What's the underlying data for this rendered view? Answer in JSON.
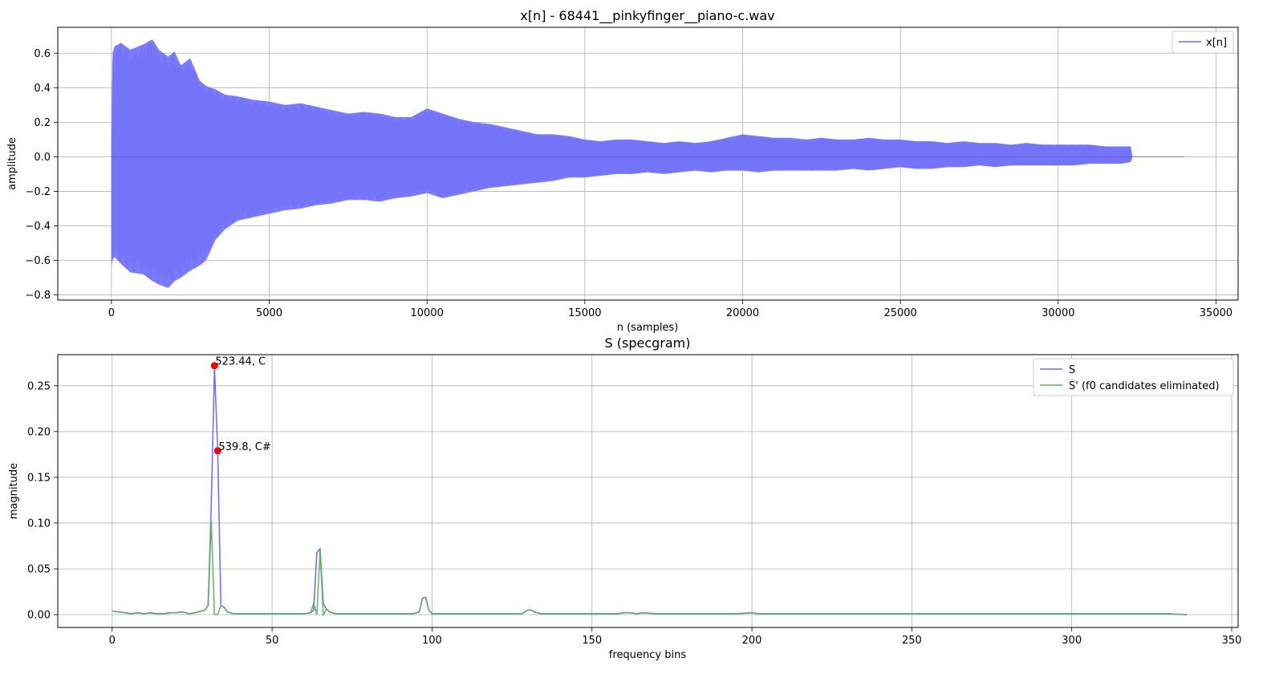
{
  "chart_data": [
    {
      "type": "area",
      "title": "x[n] - 68441__pinkyfinger__piano-c.wav",
      "xlabel": "n (samples)",
      "ylabel": "amplitude",
      "xlim": [
        -1700,
        35700
      ],
      "ylim": [
        -0.83,
        0.75
      ],
      "xticks": [
        0,
        5000,
        10000,
        15000,
        20000,
        25000,
        30000,
        35000
      ],
      "xtick_labels": [
        "0",
        "5000",
        "10000",
        "15000",
        "20000",
        "25000",
        "30000",
        "35000"
      ],
      "yticks": [
        -0.8,
        -0.6,
        -0.4,
        -0.2,
        0.0,
        0.2,
        0.4,
        0.6
      ],
      "ytick_labels": [
        "−0.8",
        "−0.6",
        "−0.4",
        "−0.2",
        "0.0",
        "0.2",
        "0.4",
        "0.6"
      ],
      "grid": true,
      "legend": {
        "position": "top-right",
        "entries": [
          "x[n]"
        ]
      },
      "series": [
        {
          "name": "x[n]",
          "color": "#7b7bff",
          "envelope": {
            "n": [
              0,
              30,
              100,
              300,
              600,
              1000,
              1300,
              1500,
              1800,
              2000,
              2200,
              2500,
              2800,
              3000,
              3300,
              3600,
              4000,
              4500,
              5000,
              5500,
              6000,
              6500,
              7000,
              7500,
              8000,
              8500,
              9000,
              9500,
              10000,
              10500,
              11000,
              11500,
              12000,
              12500,
              13000,
              13500,
              14000,
              14500,
              15000,
              15500,
              16000,
              16500,
              17000,
              17500,
              18000,
              18500,
              19000,
              19500,
              20000,
              20500,
              21000,
              21500,
              22000,
              22500,
              23000,
              23500,
              24000,
              24500,
              25000,
              25500,
              26000,
              26500,
              27000,
              27500,
              28000,
              28500,
              29000,
              29500,
              30000,
              30500,
              31000,
              31500,
              32000,
              32300,
              32350,
              34000
            ],
            "upper": [
              0.07,
              0.6,
              0.64,
              0.66,
              0.62,
              0.65,
              0.68,
              0.62,
              0.58,
              0.61,
              0.53,
              0.57,
              0.44,
              0.41,
              0.39,
              0.36,
              0.35,
              0.33,
              0.32,
              0.3,
              0.31,
              0.29,
              0.27,
              0.25,
              0.26,
              0.25,
              0.23,
              0.23,
              0.28,
              0.25,
              0.22,
              0.2,
              0.19,
              0.17,
              0.15,
              0.13,
              0.13,
              0.12,
              0.1,
              0.09,
              0.1,
              0.1,
              0.09,
              0.08,
              0.09,
              0.08,
              0.09,
              0.11,
              0.13,
              0.12,
              0.11,
              0.11,
              0.1,
              0.11,
              0.1,
              0.1,
              0.11,
              0.1,
              0.1,
              0.09,
              0.09,
              0.08,
              0.09,
              0.08,
              0.08,
              0.07,
              0.08,
              0.07,
              0.07,
              0.07,
              0.07,
              0.06,
              0.06,
              0.06,
              0.0,
              0.0
            ],
            "lower": [
              -0.64,
              -0.6,
              -0.58,
              -0.62,
              -0.67,
              -0.68,
              -0.72,
              -0.74,
              -0.76,
              -0.72,
              -0.7,
              -0.66,
              -0.63,
              -0.6,
              -0.48,
              -0.42,
              -0.37,
              -0.35,
              -0.33,
              -0.31,
              -0.3,
              -0.28,
              -0.27,
              -0.25,
              -0.25,
              -0.26,
              -0.24,
              -0.23,
              -0.21,
              -0.24,
              -0.22,
              -0.2,
              -0.18,
              -0.17,
              -0.16,
              -0.15,
              -0.14,
              -0.12,
              -0.12,
              -0.11,
              -0.1,
              -0.1,
              -0.09,
              -0.1,
              -0.09,
              -0.08,
              -0.09,
              -0.08,
              -0.08,
              -0.09,
              -0.08,
              -0.08,
              -0.08,
              -0.08,
              -0.08,
              -0.07,
              -0.08,
              -0.07,
              -0.06,
              -0.07,
              -0.07,
              -0.06,
              -0.06,
              -0.05,
              -0.06,
              -0.05,
              -0.05,
              -0.05,
              -0.05,
              -0.05,
              -0.04,
              -0.04,
              -0.04,
              -0.03,
              0.0,
              0.0
            ]
          }
        }
      ]
    },
    {
      "type": "line",
      "title": "S (specgram)",
      "xlabel": "frequency bins",
      "ylabel": "magnitude",
      "xlim": [
        -17,
        352
      ],
      "ylim": [
        -0.014,
        0.284
      ],
      "xticks": [
        0,
        50,
        100,
        150,
        200,
        250,
        300,
        350
      ],
      "xtick_labels": [
        "0",
        "50",
        "100",
        "150",
        "200",
        "250",
        "300",
        "350"
      ],
      "yticks": [
        0.0,
        0.05,
        0.1,
        0.15,
        0.2,
        0.25
      ],
      "ytick_labels": [
        "0.00",
        "0.05",
        "0.10",
        "0.15",
        "0.20",
        "0.25"
      ],
      "grid": true,
      "legend": {
        "position": "top-right",
        "entries": [
          "S",
          "S' (f0 candidates eliminated)"
        ]
      },
      "series": [
        {
          "name": "S",
          "color": "#6b6bf0",
          "x": [
            0,
            2,
            4,
            6,
            8,
            10,
            12,
            14,
            16,
            18,
            20,
            22,
            24,
            26,
            28,
            29,
            30,
            31,
            32,
            33,
            34,
            35,
            36,
            38,
            40,
            45,
            50,
            55,
            60,
            62,
            63,
            64,
            65,
            66,
            67,
            68,
            70,
            75,
            80,
            85,
            90,
            94,
            96,
            97,
            98,
            99,
            100,
            102,
            105,
            110,
            120,
            128,
            130,
            131,
            132,
            134,
            136,
            140,
            150,
            158,
            160,
            162,
            164,
            166,
            170,
            180,
            190,
            195,
            200,
            202,
            205,
            210,
            220,
            225,
            230,
            235,
            240,
            250,
            260,
            270,
            280,
            290,
            300,
            310,
            320,
            330,
            336
          ],
          "y": [
            0.004,
            0.003,
            0.002,
            0.001,
            0.002,
            0.001,
            0.002,
            0.001,
            0.001,
            0.002,
            0.002,
            0.003,
            0.001,
            0.002,
            0.004,
            0.005,
            0.01,
            0.12,
            0.27,
            0.18,
            0.01,
            0.008,
            0.003,
            0.001,
            0.001,
            0.001,
            0.001,
            0.001,
            0.001,
            0.002,
            0.005,
            0.068,
            0.072,
            0.012,
            0.006,
            0.003,
            0.001,
            0.001,
            0.001,
            0.001,
            0.001,
            0.001,
            0.003,
            0.018,
            0.019,
            0.005,
            0.001,
            0.001,
            0.001,
            0.001,
            0.001,
            0.001,
            0.005,
            0.005,
            0.003,
            0.001,
            0.001,
            0.001,
            0.001,
            0.001,
            0.002,
            0.002,
            0.001,
            0.002,
            0.001,
            0.001,
            0.001,
            0.001,
            0.002,
            0.001,
            0.001,
            0.001,
            0.001,
            0.001,
            0.001,
            0.001,
            0.001,
            0.001,
            0.001,
            0.001,
            0.001,
            0.001,
            0.001,
            0.001,
            0.001,
            0.001,
            0.0
          ]
        },
        {
          "name": "S' (f0 candidates eliminated)",
          "color": "#5fae5f",
          "x": [
            0,
            2,
            4,
            6,
            8,
            10,
            12,
            14,
            16,
            18,
            20,
            22,
            24,
            26,
            28,
            29,
            30,
            31,
            32,
            33,
            34,
            35,
            36,
            38,
            40,
            45,
            50,
            55,
            60,
            62,
            63,
            64,
            65,
            66,
            67,
            68,
            70,
            75,
            80,
            85,
            90,
            94,
            96,
            97,
            98,
            99,
            100,
            102,
            105,
            110,
            120,
            128,
            130,
            131,
            132,
            134,
            136,
            140,
            150,
            158,
            160,
            162,
            164,
            166,
            170,
            180,
            190,
            195,
            200,
            202,
            205,
            210,
            220,
            225,
            230,
            235,
            240,
            250,
            260,
            270,
            280,
            290,
            300,
            310,
            320,
            330,
            336
          ],
          "y": [
            0.004,
            0.003,
            0.002,
            0.001,
            0.002,
            0.001,
            0.002,
            0.001,
            0.001,
            0.002,
            0.002,
            0.003,
            0.001,
            0.002,
            0.004,
            0.005,
            0.01,
            0.103,
            0.0,
            0.0,
            0.01,
            0.008,
            0.003,
            0.001,
            0.001,
            0.001,
            0.001,
            0.001,
            0.001,
            0.002,
            0.012,
            0.0,
            0.07,
            0.0,
            0.006,
            0.003,
            0.001,
            0.001,
            0.001,
            0.001,
            0.001,
            0.001,
            0.003,
            0.018,
            0.019,
            0.005,
            0.001,
            0.001,
            0.001,
            0.001,
            0.001,
            0.001,
            0.005,
            0.005,
            0.003,
            0.001,
            0.001,
            0.001,
            0.001,
            0.001,
            0.002,
            0.002,
            0.001,
            0.002,
            0.001,
            0.001,
            0.001,
            0.001,
            0.002,
            0.001,
            0.001,
            0.001,
            0.001,
            0.001,
            0.001,
            0.001,
            0.001,
            0.001,
            0.001,
            0.001,
            0.001,
            0.001,
            0.001,
            0.001,
            0.001,
            0.001,
            0.0
          ]
        }
      ],
      "points": [
        {
          "x": 32,
          "y": 0.272,
          "label": "523.44, C",
          "color": "#ff0000"
        },
        {
          "x": 33,
          "y": 0.179,
          "label": "539.8, C#",
          "color": "#ff0000"
        }
      ]
    }
  ]
}
